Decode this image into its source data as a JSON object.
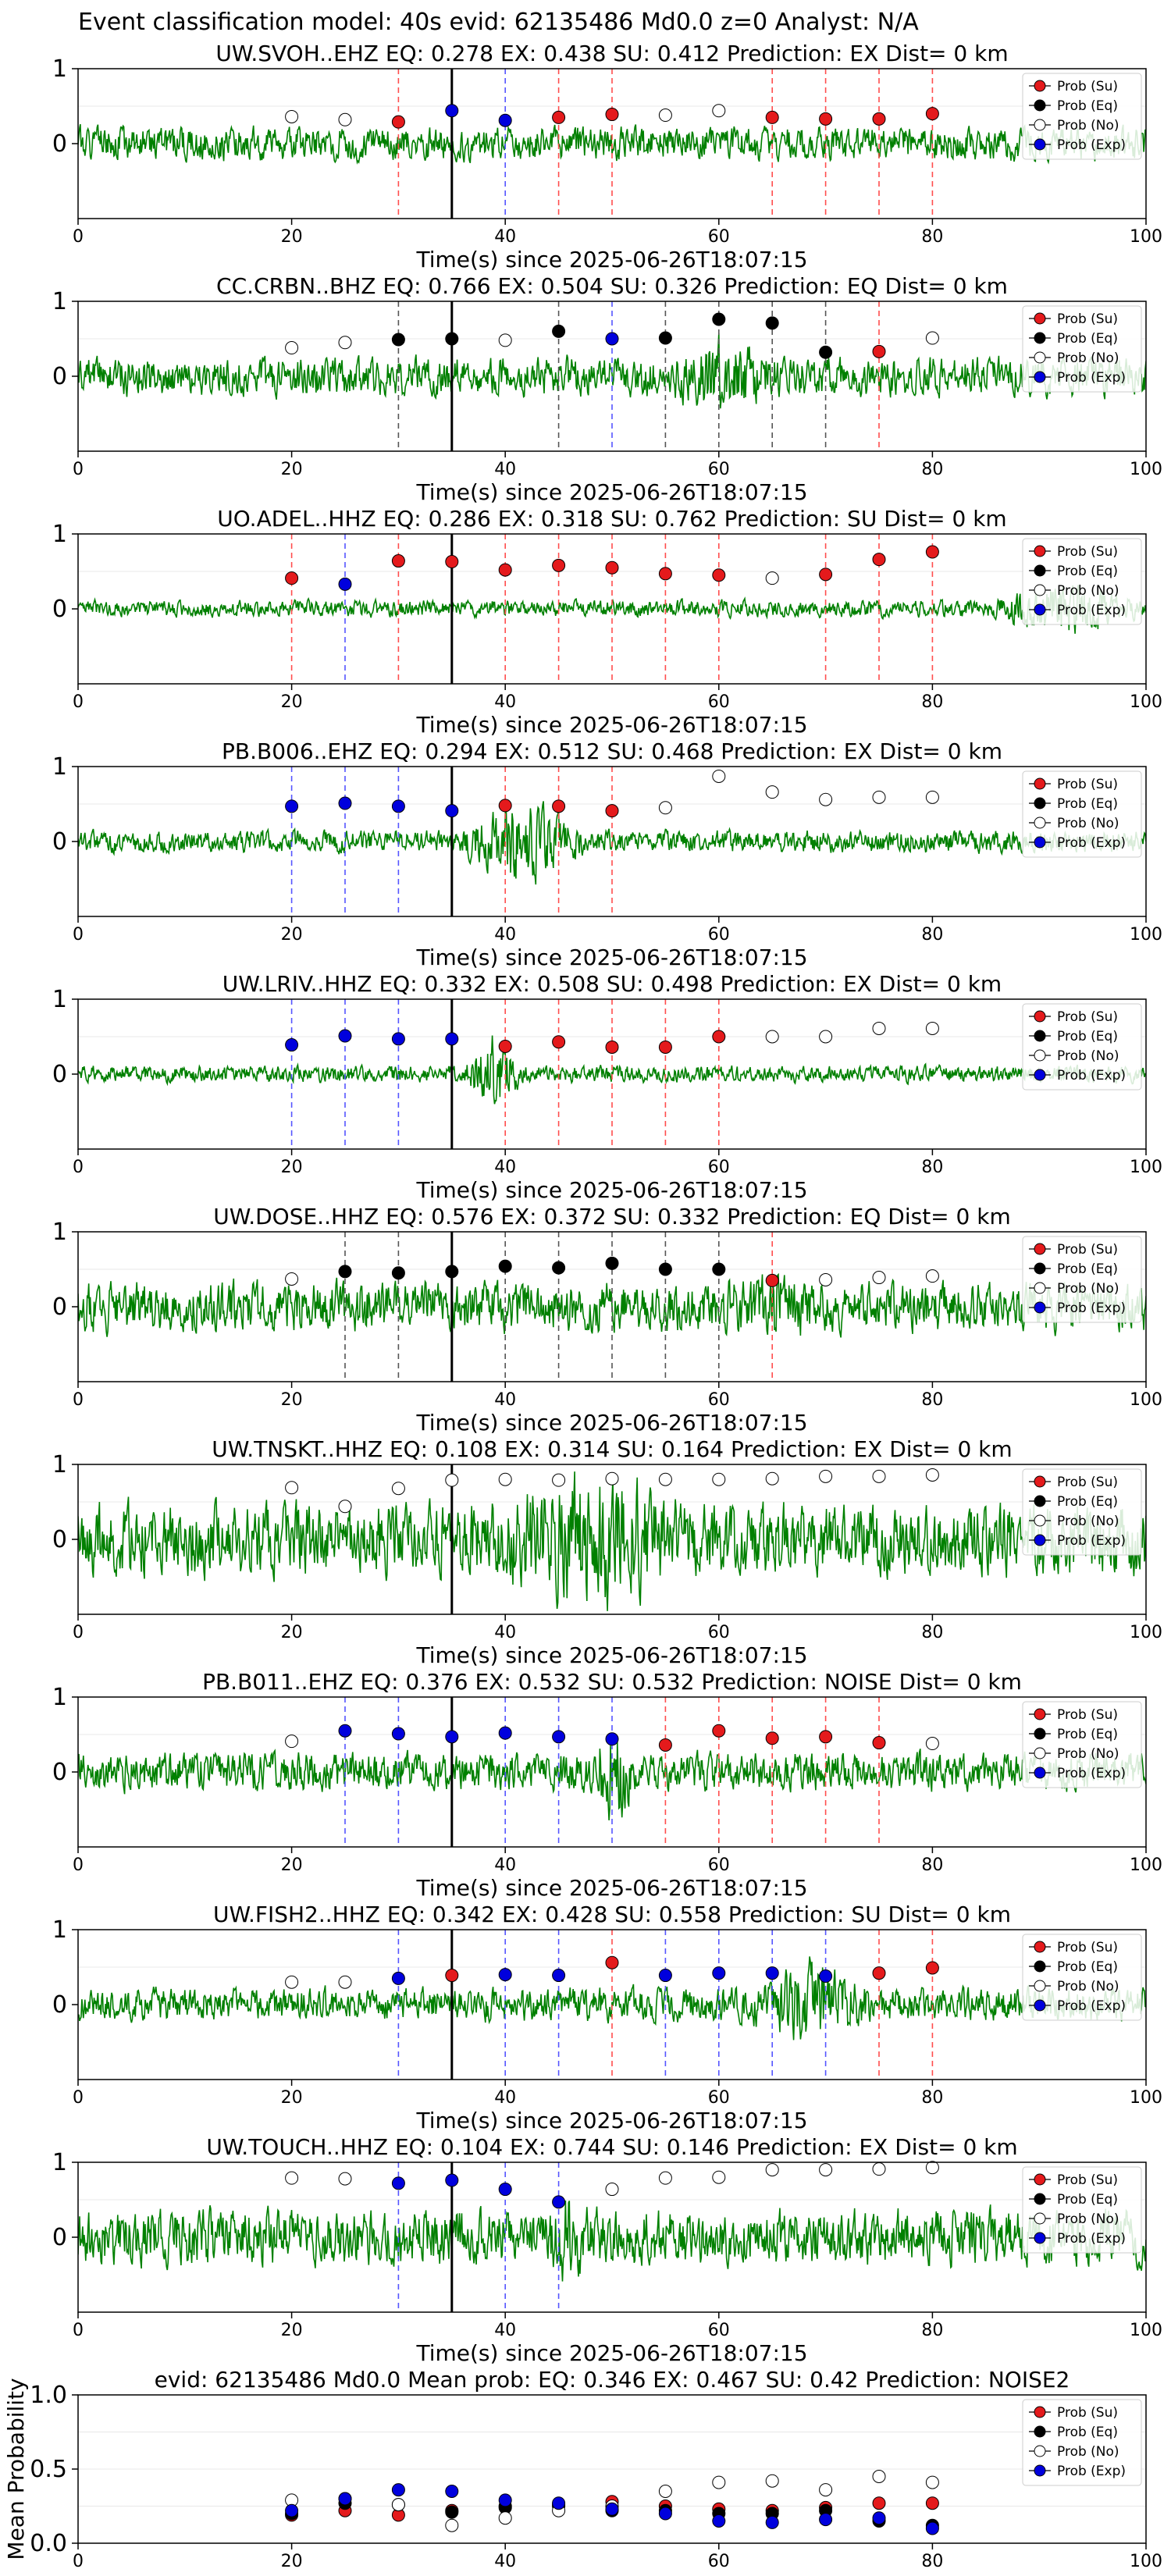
{
  "figure_title": "Event classification model: 40s evid: 62135486 Md0.0 z=0 Analyst: N/A",
  "legend_labels": [
    "Prob (Su)",
    "Prob (Eq)",
    "Prob (No)",
    "Prob (Exp)"
  ],
  "colors": {
    "su": "#e41a1c",
    "eq": "#000000",
    "no": "#ffffff",
    "exp": "#0000dd",
    "trace": "#008000",
    "vline_su": "#ff4d4d",
    "vline_eq": "#555555",
    "vline_exp": "#5555ff",
    "pick": "#000000"
  },
  "chart_data": [
    {
      "type": "line",
      "title": "UW.SVOH..EHZ   EQ: 0.278   EX: 0.438   SU: 0.412   Prediction: EX    Dist= 0 km",
      "xlabel": "Time(s) since 2025-06-26T18:07:15",
      "xlim": [
        0,
        100
      ],
      "xticks": [
        0,
        20,
        40,
        60,
        80,
        100
      ],
      "ylim": [
        -1,
        1
      ],
      "yticks": [
        0,
        1
      ],
      "pick_time": 35,
      "trace_amp": 0.3,
      "burst": [
        38,
        55,
        1.0
      ],
      "seed": 1,
      "x": [
        20,
        25,
        30,
        35,
        40,
        45,
        50,
        55,
        60,
        65,
        70,
        75,
        80
      ],
      "dominant": [
        "no",
        "no",
        "su",
        "exp",
        "exp",
        "su",
        "su",
        "no",
        "no",
        "su",
        "su",
        "su",
        "su"
      ],
      "values": [
        0.36,
        0.32,
        0.29,
        0.44,
        0.31,
        0.35,
        0.39,
        0.38,
        0.44,
        0.35,
        0.33,
        0.33,
        0.4
      ]
    },
    {
      "type": "line",
      "title": "CC.CRBN..BHZ   EQ: 0.766   EX: 0.504   SU: 0.326   Prediction: EQ    Dist= 0 km",
      "xlabel": "Time(s) since 2025-06-26T18:07:15",
      "xlim": [
        0,
        100
      ],
      "xticks": [
        0,
        20,
        40,
        60,
        80,
        100
      ],
      "ylim": [
        -1,
        1
      ],
      "yticks": [
        0,
        1
      ],
      "pick_time": 35,
      "trace_amp": 0.35,
      "burst": [
        55,
        66,
        2.2
      ],
      "seed": 2,
      "x": [
        20,
        25,
        30,
        35,
        40,
        45,
        50,
        55,
        60,
        65,
        70,
        75,
        80
      ],
      "dominant": [
        "no",
        "no",
        "eq",
        "eq",
        "no",
        "eq",
        "exp",
        "eq",
        "eq",
        "eq",
        "eq",
        "su",
        "no"
      ],
      "values": [
        0.38,
        0.45,
        0.49,
        0.5,
        0.48,
        0.6,
        0.5,
        0.51,
        0.76,
        0.71,
        0.32,
        0.33,
        0.51
      ]
    },
    {
      "type": "line",
      "title": "UO.ADEL..HHZ   EQ: 0.286   EX: 0.318   SU: 0.762   Prediction: SU    Dist= 0 km",
      "xlabel": "Time(s) since 2025-06-26T18:07:15",
      "xlim": [
        0,
        100
      ],
      "xticks": [
        0,
        20,
        40,
        60,
        80,
        100
      ],
      "ylim": [
        -1,
        1
      ],
      "yticks": [
        0,
        1
      ],
      "pick_time": 35,
      "trace_amp": 0.15,
      "burst": [
        85,
        100,
        3.5
      ],
      "seed": 3,
      "x": [
        20,
        25,
        30,
        35,
        40,
        45,
        50,
        55,
        60,
        65,
        70,
        75,
        80
      ],
      "dominant": [
        "su",
        "exp",
        "su",
        "su",
        "su",
        "su",
        "su",
        "su",
        "su",
        "no",
        "su",
        "su",
        "su"
      ],
      "values": [
        0.41,
        0.33,
        0.64,
        0.63,
        0.52,
        0.58,
        0.55,
        0.47,
        0.45,
        0.41,
        0.46,
        0.66,
        0.76
      ]
    },
    {
      "type": "line",
      "title": "PB.B006..EHZ   EQ: 0.294   EX: 0.512   SU: 0.468   Prediction: EX    Dist= 0 km",
      "xlabel": "Time(s) since 2025-06-26T18:07:15",
      "xlim": [
        0,
        100
      ],
      "xticks": [
        0,
        20,
        40,
        60,
        80,
        100
      ],
      "ylim": [
        -1,
        1
      ],
      "yticks": [
        0,
        1
      ],
      "pick_time": 35,
      "trace_amp": 0.2,
      "burst": [
        35,
        48,
        4.0
      ],
      "seed": 4,
      "x": [
        20,
        25,
        30,
        35,
        40,
        45,
        50,
        55,
        60,
        65,
        70,
        75,
        80
      ],
      "dominant": [
        "exp",
        "exp",
        "exp",
        "exp",
        "su",
        "su",
        "su",
        "no",
        "no",
        "no",
        "no",
        "no",
        "no"
      ],
      "values": [
        0.47,
        0.51,
        0.47,
        0.41,
        0.48,
        0.47,
        0.41,
        0.45,
        0.87,
        0.66,
        0.56,
        0.59,
        0.59
      ]
    },
    {
      "type": "line",
      "title": "UW.LRIV..HHZ   EQ: 0.332   EX: 0.508   SU: 0.498   Prediction: EX    Dist= 0 km",
      "xlabel": "Time(s) since 2025-06-26T18:07:15",
      "xlim": [
        0,
        100
      ],
      "xticks": [
        0,
        20,
        40,
        60,
        80,
        100
      ],
      "ylim": [
        -1,
        1
      ],
      "yticks": [
        0,
        1
      ],
      "pick_time": 35,
      "trace_amp": 0.15,
      "burst": [
        36,
        42,
        5.0
      ],
      "seed": 5,
      "x": [
        20,
        25,
        30,
        35,
        40,
        45,
        50,
        55,
        60,
        65,
        70,
        75,
        80
      ],
      "dominant": [
        "exp",
        "exp",
        "exp",
        "exp",
        "su",
        "su",
        "su",
        "su",
        "su",
        "no",
        "no",
        "no",
        "no"
      ],
      "values": [
        0.39,
        0.51,
        0.47,
        0.47,
        0.37,
        0.43,
        0.36,
        0.36,
        0.5,
        0.5,
        0.5,
        0.61,
        0.61
      ]
    },
    {
      "type": "line",
      "title": "UW.DOSE..HHZ   EQ: 0.576   EX: 0.372   SU: 0.332   Prediction: EQ    Dist= 0 km",
      "xlabel": "Time(s) since 2025-06-26T18:07:15",
      "xlim": [
        0,
        100
      ],
      "xticks": [
        0,
        20,
        40,
        60,
        80,
        100
      ],
      "ylim": [
        -1,
        1
      ],
      "yticks": [
        0,
        1
      ],
      "pick_time": 35,
      "trace_amp": 0.45,
      "burst": [
        60,
        70,
        1.5
      ],
      "seed": 6,
      "x": [
        20,
        25,
        30,
        35,
        40,
        45,
        50,
        55,
        60,
        65,
        70,
        75,
        80
      ],
      "dominant": [
        "no",
        "eq",
        "eq",
        "eq",
        "eq",
        "eq",
        "eq",
        "eq",
        "eq",
        "su",
        "no",
        "no",
        "no"
      ],
      "values": [
        0.37,
        0.47,
        0.45,
        0.47,
        0.54,
        0.52,
        0.58,
        0.5,
        0.5,
        0.35,
        0.36,
        0.39,
        0.41
      ]
    },
    {
      "type": "line",
      "title": "UW.TNSKT..HHZ   EQ: 0.108   EX: 0.314   SU: 0.164   Prediction: EX    Dist= 0 km",
      "xlabel": "Time(s) since 2025-06-26T18:07:15",
      "xlim": [
        0,
        100
      ],
      "xticks": [
        0,
        20,
        40,
        60,
        80,
        100
      ],
      "ylim": [
        -1,
        1
      ],
      "yticks": [
        0,
        1
      ],
      "pick_time": 35,
      "trace_amp": 0.65,
      "burst": [
        38,
        58,
        2.0
      ],
      "seed": 7,
      "x": [
        20,
        25,
        30,
        35,
        40,
        45,
        50,
        55,
        60,
        65,
        70,
        75,
        80
      ],
      "dominant": [
        "no",
        "no",
        "no",
        "no",
        "no",
        "no",
        "no",
        "no",
        "no",
        "no",
        "no",
        "no",
        "no"
      ],
      "values": [
        0.69,
        0.44,
        0.68,
        0.79,
        0.8,
        0.79,
        0.81,
        0.8,
        0.8,
        0.81,
        0.84,
        0.84,
        0.86
      ]
    },
    {
      "type": "line",
      "title": "PB.B011..EHZ   EQ: 0.376   EX: 0.532   SU: 0.532   Prediction: NOISE    Dist= 0 km",
      "xlabel": "Time(s) since 2025-06-26T18:07:15",
      "xlim": [
        0,
        100
      ],
      "xticks": [
        0,
        20,
        40,
        60,
        80,
        100
      ],
      "ylim": [
        -1,
        1
      ],
      "yticks": [
        0,
        1
      ],
      "pick_time": 35,
      "trace_amp": 0.35,
      "burst": [
        48,
        52,
        3.5
      ],
      "seed": 8,
      "x": [
        20,
        25,
        30,
        35,
        40,
        45,
        50,
        55,
        60,
        65,
        70,
        75,
        80
      ],
      "dominant": [
        "no",
        "exp",
        "exp",
        "exp",
        "exp",
        "exp",
        "exp",
        "su",
        "su",
        "su",
        "su",
        "su",
        "no"
      ],
      "values": [
        0.41,
        0.55,
        0.51,
        0.47,
        0.52,
        0.47,
        0.44,
        0.36,
        0.55,
        0.45,
        0.47,
        0.39,
        0.38
      ]
    },
    {
      "type": "line",
      "title": "UW.FISH2..HHZ   EQ: 0.342   EX: 0.428   SU: 0.558   Prediction: SU    Dist= 0 km",
      "xlabel": "Time(s) since 2025-06-26T18:07:15",
      "xlim": [
        0,
        100
      ],
      "xticks": [
        0,
        20,
        40,
        60,
        80,
        100
      ],
      "ylim": [
        -1,
        1
      ],
      "yticks": [
        0,
        1
      ],
      "pick_time": 35,
      "trace_amp": 0.3,
      "burst": [
        62,
        75,
        2.5
      ],
      "seed": 9,
      "x": [
        20,
        25,
        30,
        35,
        40,
        45,
        50,
        55,
        60,
        65,
        70,
        75,
        80
      ],
      "dominant": [
        "no",
        "no",
        "exp",
        "su",
        "exp",
        "exp",
        "su",
        "exp",
        "exp",
        "exp",
        "exp",
        "su",
        "su"
      ],
      "values": [
        0.3,
        0.3,
        0.35,
        0.39,
        0.4,
        0.39,
        0.56,
        0.39,
        0.42,
        0.42,
        0.38,
        0.42,
        0.49
      ]
    },
    {
      "type": "line",
      "title": "UW.TOUCH..HHZ   EQ: 0.104   EX: 0.744   SU: 0.146   Prediction: EX    Dist= 0 km",
      "xlabel": "Time(s) since 2025-06-26T18:07:15",
      "xlim": [
        0,
        100
      ],
      "xticks": [
        0,
        20,
        40,
        60,
        80,
        100
      ],
      "ylim": [
        -1,
        1
      ],
      "yticks": [
        0,
        1
      ],
      "pick_time": 35,
      "trace_amp": 0.5,
      "burst": [
        44,
        48,
        1.8
      ],
      "seed": 10,
      "x": [
        20,
        25,
        30,
        35,
        40,
        45,
        50,
        55,
        60,
        65,
        70,
        75,
        80
      ],
      "dominant": [
        "no",
        "no",
        "exp",
        "exp",
        "exp",
        "exp",
        "no",
        "no",
        "no",
        "no",
        "no",
        "no",
        "no"
      ],
      "values": [
        0.79,
        0.78,
        0.72,
        0.76,
        0.64,
        0.47,
        0.64,
        0.79,
        0.8,
        0.9,
        0.9,
        0.91,
        0.93
      ]
    },
    {
      "type": "scatter",
      "title": "evid: 62135486  Md0.0   Mean prob:   EQ: 0.346  EX: 0.467  SU: 0.42   Prediction: NOISE2",
      "ylabel": "Mean Probability",
      "xlim": [
        0,
        100
      ],
      "xticks": [
        0,
        20,
        40,
        60,
        80,
        100
      ],
      "ylim": [
        0,
        1
      ],
      "yticks": [
        "0.0",
        "0.5",
        "1.0"
      ],
      "x": [
        20,
        25,
        30,
        35,
        40,
        45,
        50,
        55,
        60,
        65,
        70,
        75,
        80
      ],
      "series": [
        {
          "name": "Prob (Su)",
          "key": "su",
          "values": [
            0.19,
            0.22,
            0.19,
            0.22,
            0.25,
            0.26,
            0.28,
            0.25,
            0.23,
            0.22,
            0.24,
            0.27,
            0.27
          ]
        },
        {
          "name": "Prob (Eq)",
          "key": "eq",
          "values": [
            0.2,
            0.27,
            0.26,
            0.21,
            0.24,
            0.25,
            0.22,
            0.22,
            0.2,
            0.2,
            0.22,
            0.15,
            0.12
          ]
        },
        {
          "name": "Prob (No)",
          "key": "no",
          "values": [
            0.29,
            0.3,
            0.26,
            0.12,
            0.17,
            0.22,
            0.25,
            0.35,
            0.41,
            0.42,
            0.36,
            0.45,
            0.41
          ]
        },
        {
          "name": "Prob (Exp)",
          "key": "exp",
          "values": [
            0.22,
            0.3,
            0.36,
            0.35,
            0.29,
            0.27,
            0.23,
            0.2,
            0.15,
            0.14,
            0.16,
            0.17,
            0.1
          ]
        }
      ]
    }
  ]
}
